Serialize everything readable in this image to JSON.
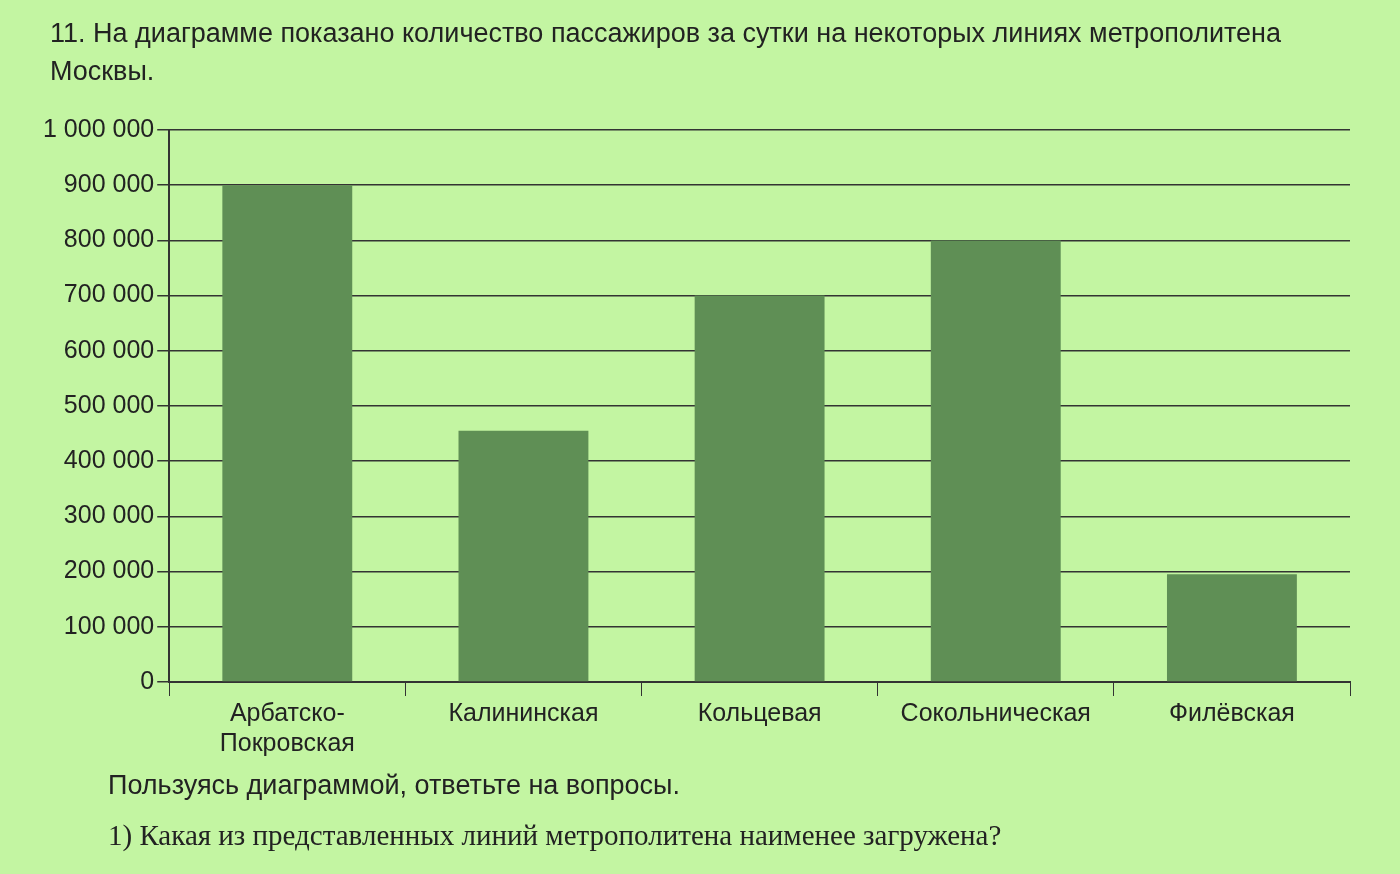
{
  "chart_data": {
    "type": "bar",
    "title": "11. На диаграмме показано количество пассажиров за сутки на некоторых линиях метрополитена Москвы.",
    "categories": [
      "Арбатско-Покровская",
      "Калининская",
      "Кольцевая",
      "Сокольническая",
      "Филёвская"
    ],
    "values": [
      900000,
      455000,
      700000,
      800000,
      195000
    ],
    "color": "#5f8f55",
    "ylim": [
      0,
      1000000
    ],
    "yticks": [
      {
        "value": 0,
        "label": "0"
      },
      {
        "value": 100000,
        "label": "100 000"
      },
      {
        "value": 200000,
        "label": "200 000"
      },
      {
        "value": 300000,
        "label": "300 000"
      },
      {
        "value": 400000,
        "label": "400 000"
      },
      {
        "value": 500000,
        "label": "500 000"
      },
      {
        "value": 600000,
        "label": "600 000"
      },
      {
        "value": 700000,
        "label": "700 000"
      },
      {
        "value": 800000,
        "label": "800 000"
      },
      {
        "value": 900000,
        "label": "900 000"
      },
      {
        "value": 1000000,
        "label": "1 000 000"
      }
    ],
    "grid": "y",
    "legend": false,
    "annotations": [
      "Пользуясь диаграммой, ответьте на вопросы.",
      "1) Какая из представленных линий метрополитена наименее загружена?"
    ]
  }
}
